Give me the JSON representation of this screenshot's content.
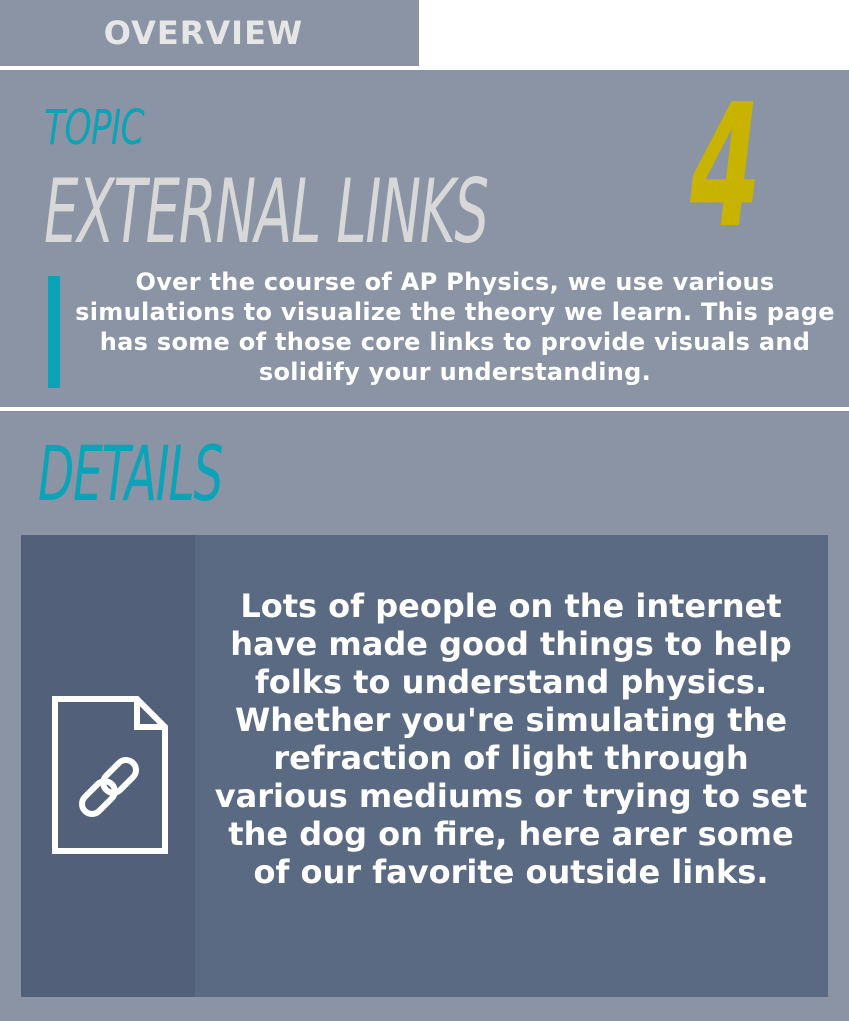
{
  "tab": {
    "label": "OVERVIEW"
  },
  "topic": {
    "label": "TOPIC",
    "title": "EXTERNAL LINKS",
    "number": "4",
    "summary": "Over the course of AP Physics, we use various simulations to visualize the theory we learn. This page has some of those core links to provide visuals and solidify your understanding."
  },
  "details": {
    "label": "DETAILS",
    "icon": "document-link-icon",
    "text": "Lots of people on the internet have made good things to help folks to understand physics. Whether you're simulating the refraction of light through various mediums or trying to set the dog on fire, here arer some of our favorite outside links."
  },
  "colors": {
    "panel": "#8a94a4",
    "accent": "#0aa3b8",
    "number": "#c8b400",
    "card": "#5a6a82",
    "card_left": "#536079"
  }
}
